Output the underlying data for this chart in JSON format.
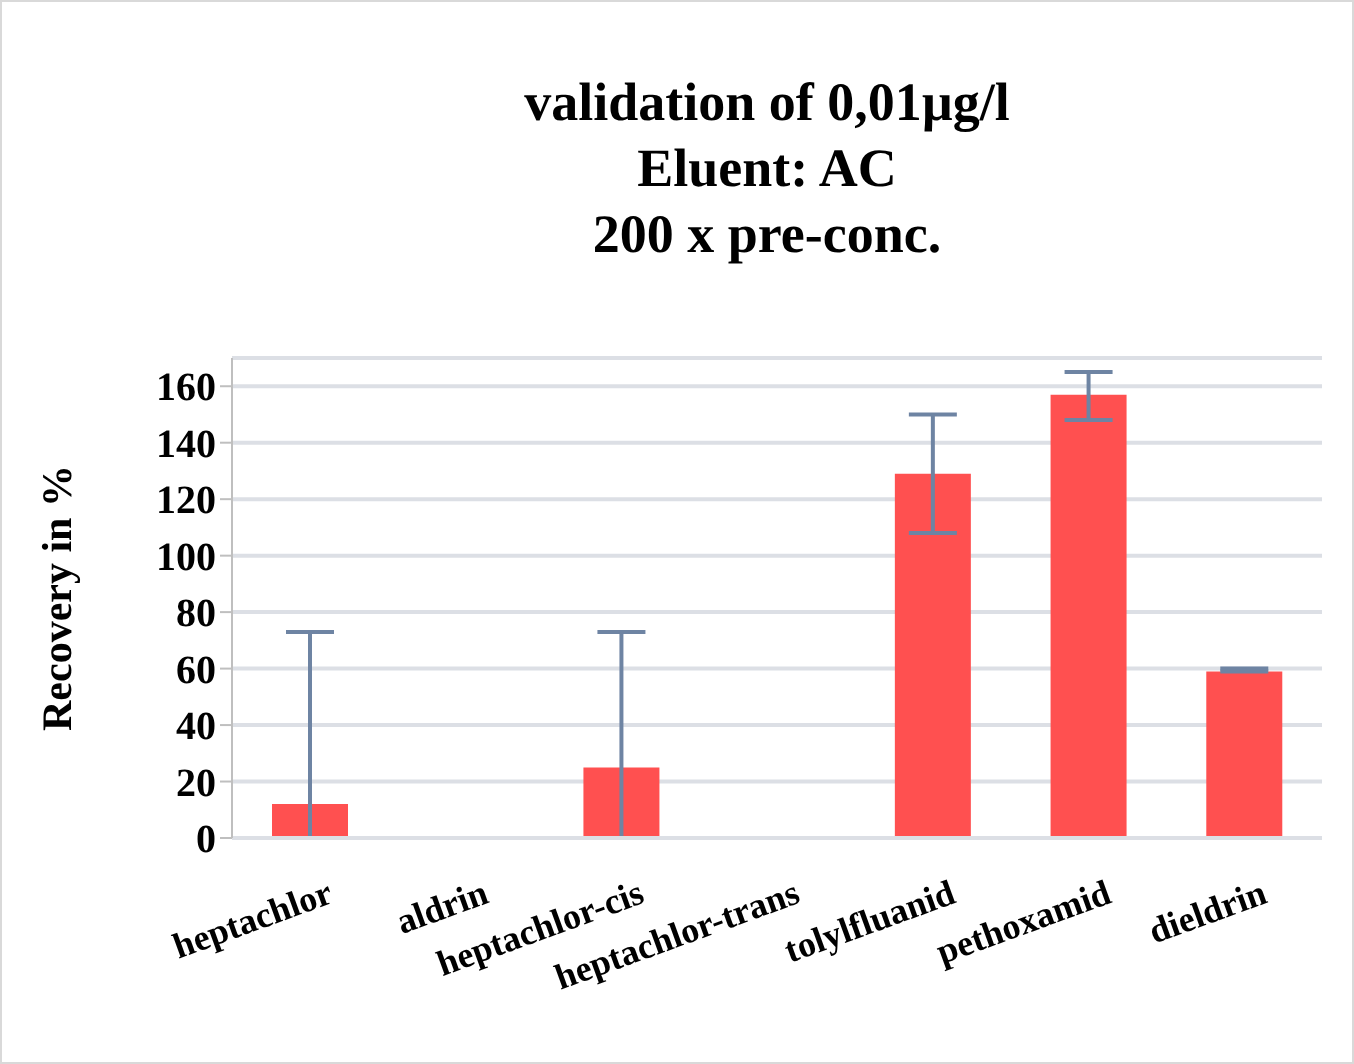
{
  "chart_data": {
    "type": "bar",
    "title": "validation of 0,01µg/l\nEluent: AC\n200 x pre-conc.",
    "ylabel": "Recovery in %",
    "categories": [
      "heptachlor",
      "aldrin",
      "heptachlor-cis",
      "heptachlor-trans",
      "tolylfluanid",
      "pethoxamid",
      "dieldrin"
    ],
    "values": [
      12,
      0,
      25,
      0,
      129,
      157,
      59
    ],
    "errors": [
      [
        0,
        73
      ],
      null,
      [
        0,
        73
      ],
      null,
      [
        108,
        150
      ],
      [
        148,
        165
      ],
      [
        59,
        60
      ]
    ],
    "color": "#ff5050",
    "ylim": [
      0,
      170
    ],
    "yticks": [
      0,
      20,
      40,
      60,
      80,
      100,
      120,
      140,
      160
    ],
    "grid": "y",
    "legend": false
  }
}
